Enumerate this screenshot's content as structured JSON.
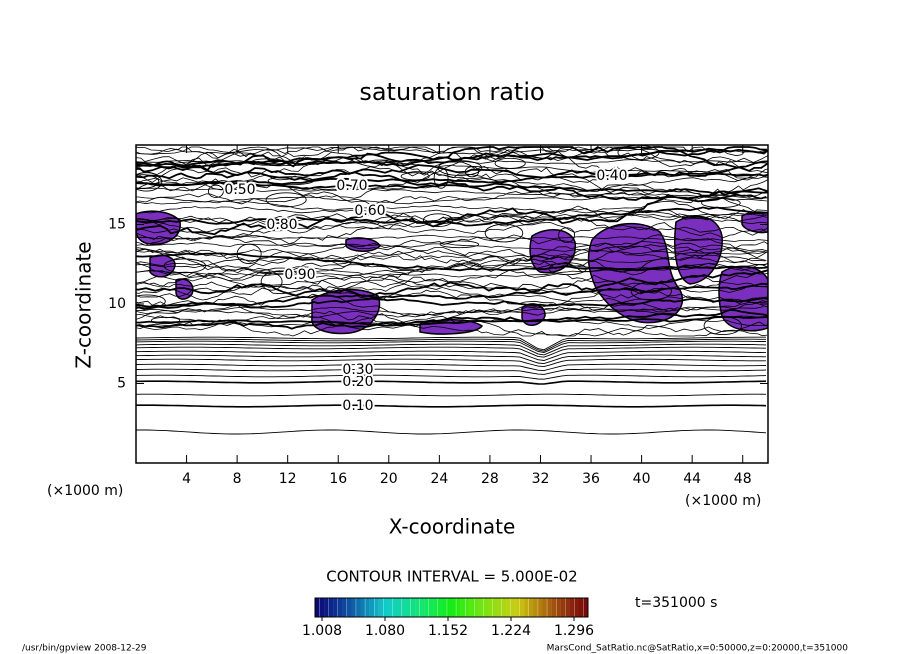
{
  "chart_data": {
    "type": "contour",
    "title": "saturation ratio",
    "xlabel": "X-coordinate",
    "ylabel": "Z-coordinate",
    "xunit": "(×1000 m)",
    "yunit": "(×1000 m)",
    "xlim": [
      0,
      50
    ],
    "ylim": [
      0,
      20
    ],
    "xticks": [
      4,
      8,
      12,
      16,
      20,
      24,
      28,
      32,
      36,
      40,
      44,
      48
    ],
    "yticks": [
      5,
      10,
      15
    ],
    "contour_labels": [
      "0.10",
      "0.20",
      "0.30",
      "0.40",
      "0.50",
      "0.60",
      "0.70",
      "0.80",
      "0.90"
    ],
    "contour_interval": "CONTOUR INTERVAL = 5.000E-02",
    "shade_color": "#7b2fbe",
    "colorbar": {
      "clim": [
        1.0,
        1.312
      ],
      "ticks": [
        1.008,
        {
          "value": 1.08,
          "label": "1.080"
        },
        1.152,
        1.224,
        1.296
      ]
    },
    "time": "t=351000 s",
    "footer_left": "/usr/bin/gpview  2008-12-29",
    "footer_right": "MarsCond_SatRatio.nc@SatRatio,x=0:50000,z=0:20000,t=351000"
  }
}
